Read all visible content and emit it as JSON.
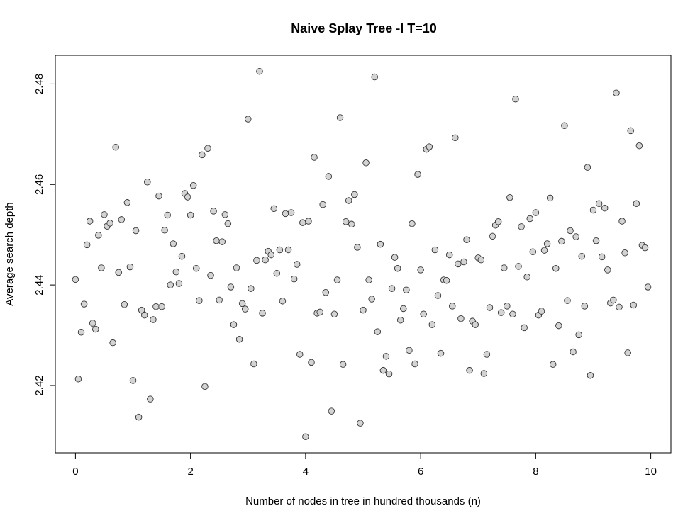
{
  "chart_data": {
    "type": "scatter",
    "title": "Naive Splay Tree -l T=10",
    "xlabel": "Number of nodes in tree in hundred thousands (n)",
    "ylabel": "Average search depth",
    "xlim": [
      -0.35,
      10.35
    ],
    "ylim": [
      2.4066,
      2.4857
    ],
    "xticks": [
      0,
      2,
      4,
      6,
      8,
      10
    ],
    "yticks": [
      2.42,
      2.44,
      2.46,
      2.48
    ],
    "xtick_labels": [
      "0",
      "2",
      "4",
      "6",
      "8",
      "10"
    ],
    "ytick_labels": [
      "2.42",
      "2.44",
      "2.46",
      "2.48"
    ],
    "grid": false,
    "legend": "none",
    "point_fill": "#d3d3d3",
    "point_stroke": "#333333",
    "x": [
      0.0,
      0.05,
      0.1,
      0.15,
      0.2,
      0.25,
      0.3,
      0.35,
      0.4,
      0.45,
      0.5,
      0.55,
      0.6,
      0.65,
      0.7,
      0.75,
      0.8,
      0.85,
      0.9,
      0.95,
      1.0,
      1.05,
      1.1,
      1.15,
      1.2,
      1.25,
      1.3,
      1.35,
      1.4,
      1.45,
      1.5,
      1.55,
      1.6,
      1.65,
      1.7,
      1.75,
      1.8,
      1.85,
      1.9,
      1.95,
      2.0,
      2.05,
      2.1,
      2.15,
      2.2,
      2.25,
      2.3,
      2.35,
      2.4,
      2.45,
      2.5,
      2.55,
      2.6,
      2.65,
      2.7,
      2.75,
      2.8,
      2.85,
      2.9,
      2.95,
      3.0,
      3.05,
      3.1,
      3.15,
      3.2,
      3.25,
      3.3,
      3.35,
      3.4,
      3.45,
      3.5,
      3.55,
      3.6,
      3.65,
      3.7,
      3.75,
      3.8,
      3.85,
      3.9,
      3.95,
      4.0,
      4.05,
      4.1,
      4.15,
      4.2,
      4.25,
      4.3,
      4.35,
      4.4,
      4.45,
      4.5,
      4.55,
      4.6,
      4.65,
      4.7,
      4.75,
      4.8,
      4.85,
      4.9,
      4.95,
      5.0,
      5.05,
      5.1,
      5.15,
      5.2,
      5.25,
      5.3,
      5.35,
      5.4,
      5.45,
      5.5,
      5.55,
      5.6,
      5.65,
      5.7,
      5.75,
      5.8,
      5.85,
      5.9,
      5.95,
      6.0,
      6.05,
      6.1,
      6.15,
      6.2,
      6.25,
      6.3,
      6.35,
      6.4,
      6.45,
      6.5,
      6.55,
      6.6,
      6.65,
      6.7,
      6.75,
      6.8,
      6.85,
      6.9,
      6.95,
      7.0,
      7.05,
      7.1,
      7.15,
      7.2,
      7.25,
      7.3,
      7.35,
      7.4,
      7.45,
      7.5,
      7.55,
      7.6,
      7.65,
      7.7,
      7.75,
      7.8,
      7.85,
      7.9,
      7.95,
      8.0,
      8.05,
      8.1,
      8.15,
      8.2,
      8.25,
      8.3,
      8.35,
      8.4,
      8.45,
      8.5,
      8.55,
      8.6,
      8.65,
      8.7,
      8.75,
      8.8,
      8.85,
      8.9,
      8.95,
      9.0,
      9.05,
      9.1,
      9.15,
      9.2,
      9.25,
      9.3,
      9.35,
      9.4,
      9.45,
      9.5,
      9.55,
      9.6,
      9.65,
      9.7,
      9.75,
      9.8,
      9.85,
      9.9,
      9.95
    ],
    "y": [
      2.4411,
      2.4213,
      2.4306,
      2.4362,
      2.448,
      2.4527,
      2.4324,
      2.4312,
      2.4499,
      2.4434,
      2.454,
      2.4517,
      2.4523,
      2.4285,
      2.4674,
      2.4425,
      2.453,
      2.4361,
      2.4564,
      2.4436,
      2.421,
      2.4508,
      2.4137,
      2.435,
      2.434,
      2.4605,
      2.4173,
      2.4331,
      2.4357,
      2.4577,
      2.4357,
      2.4509,
      2.4539,
      2.44,
      2.4482,
      2.4426,
      2.4403,
      2.4457,
      2.4582,
      2.4575,
      2.4539,
      2.4598,
      2.4433,
      2.4369,
      2.4659,
      2.4198,
      2.4672,
      2.4419,
      2.4547,
      2.4488,
      2.437,
      2.4486,
      2.454,
      2.4522,
      2.4396,
      2.4321,
      2.4434,
      2.4292,
      2.4363,
      2.4352,
      2.473,
      2.4393,
      2.4243,
      2.4449,
      2.4825,
      2.4344,
      2.445,
      2.4467,
      2.446,
      2.4552,
      2.4423,
      2.447,
      2.4368,
      2.4542,
      2.447,
      2.4544,
      2.4412,
      2.4441,
      2.4262,
      2.4524,
      2.4098,
      2.4527,
      2.4246,
      2.4654,
      2.4344,
      2.4346,
      2.456,
      2.4385,
      2.4616,
      2.4149,
      2.4342,
      2.441,
      2.4733,
      2.4242,
      2.4526,
      2.4568,
      2.4521,
      2.458,
      2.4475,
      2.4125,
      2.435,
      2.4643,
      2.441,
      2.4372,
      2.4814,
      2.4307,
      2.4481,
      2.423,
      2.4258,
      2.4223,
      2.4393,
      2.4455,
      2.4433,
      2.433,
      2.4353,
      2.439,
      2.427,
      2.4522,
      2.4243,
      2.462,
      2.443,
      2.4342,
      2.467,
      2.4675,
      2.4321,
      2.447,
      2.4379,
      2.4264,
      2.441,
      2.4409,
      2.446,
      2.4358,
      2.4693,
      2.4442,
      2.4333,
      2.4446,
      2.449,
      2.423,
      2.4328,
      2.4321,
      2.4454,
      2.445,
      2.4224,
      2.4262,
      2.4355,
      2.4497,
      2.4519,
      2.4526,
      2.4345,
      2.4434,
      2.4358,
      2.4574,
      2.4342,
      2.477,
      2.4437,
      2.4516,
      2.4315,
      2.4416,
      2.4532,
      2.4466,
      2.4544,
      2.434,
      2.4348,
      2.4469,
      2.4482,
      2.4573,
      2.4242,
      2.4433,
      2.4319,
      2.4487,
      2.4717,
      2.4369,
      2.4508,
      2.4267,
      2.4496,
      2.4301,
      2.4457,
      2.4358,
      2.4634,
      2.422,
      2.4549,
      2.4488,
      2.4562,
      2.4456,
      2.4553,
      2.443,
      2.4364,
      2.437,
      2.4782,
      2.4356,
      2.4527,
      2.4464,
      2.4265,
      2.4707,
      2.436,
      2.4562,
      2.4677,
      2.4479,
      2.4474,
      2.4396
    ]
  }
}
